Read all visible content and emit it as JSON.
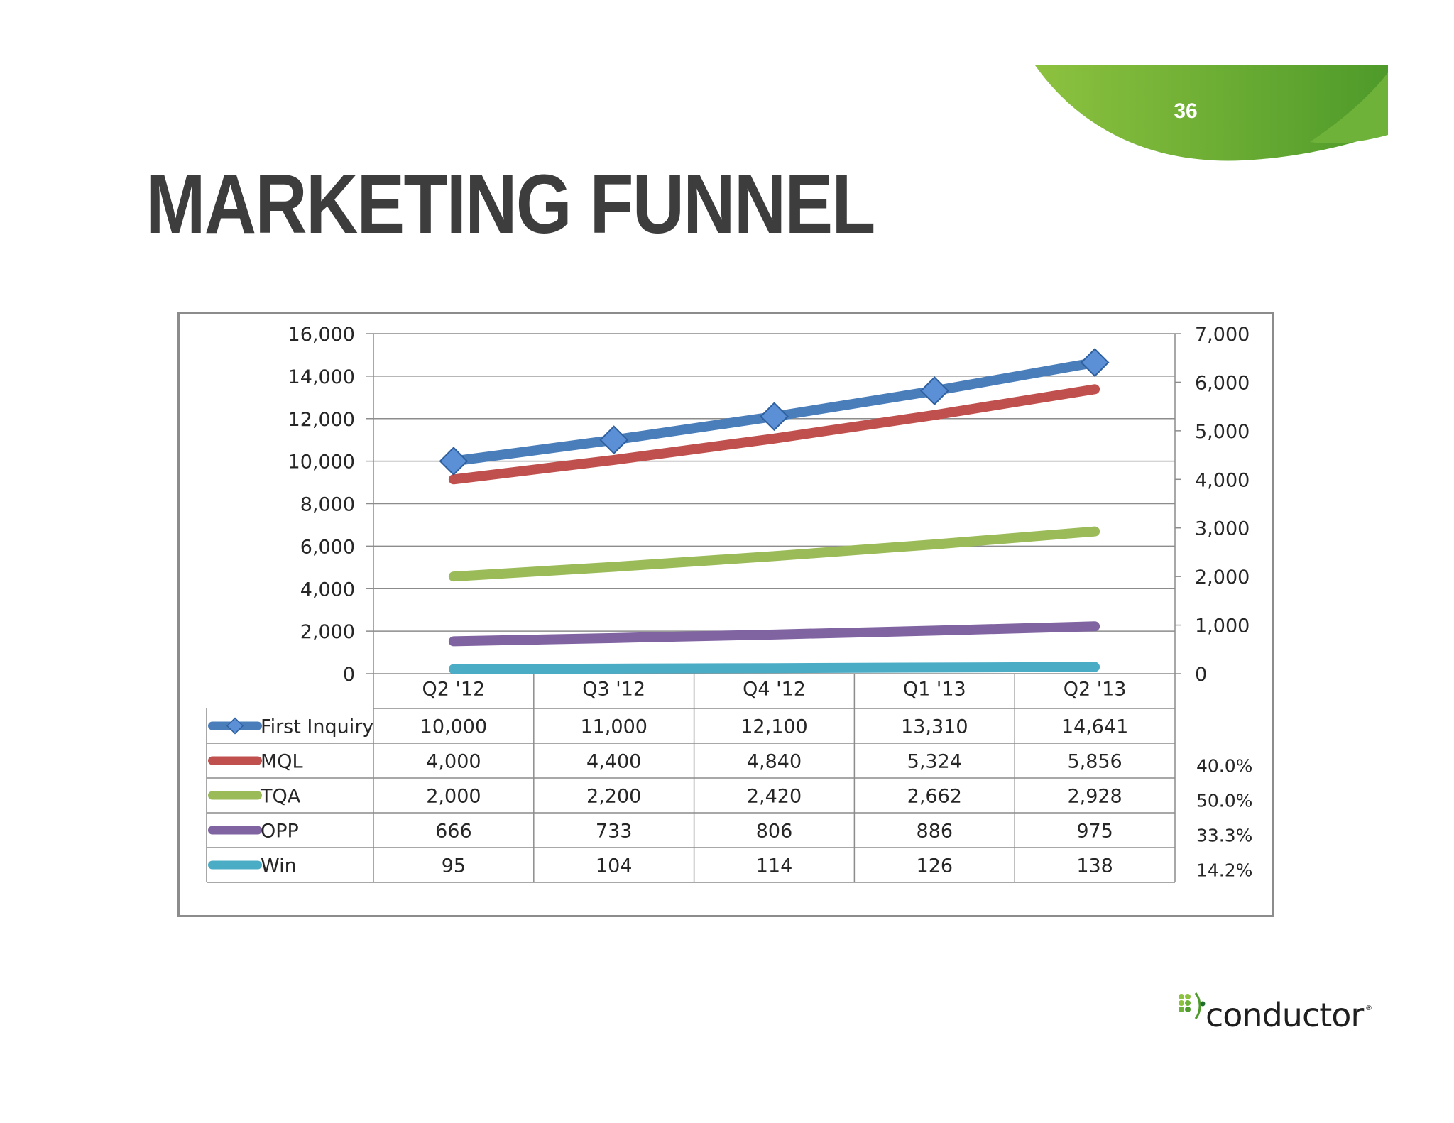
{
  "slide": {
    "number": "36",
    "title": "MARKETING FUNNEL",
    "logo_text": "conductor",
    "logo_mark": "®",
    "colors": {
      "accent_green": "#7ab648",
      "accent_green_dark": "#4e9a2a",
      "title": "#3d3d3d"
    }
  },
  "chart_data": {
    "type": "line",
    "categories": [
      "Q2 '12",
      "Q3 '12",
      "Q4 '12",
      "Q1 '13",
      "Q2 '13"
    ],
    "y_left": {
      "ticks": [
        "16,000",
        "14,000",
        "12,000",
        "10,000",
        "8,000",
        "6,000",
        "4,000",
        "2,000",
        "0"
      ],
      "ylim": [
        0,
        16000
      ]
    },
    "y_right": {
      "ticks": [
        "7,000",
        "6,000",
        "5,000",
        "4,000",
        "3,000",
        "2,000",
        "1,000",
        "0"
      ],
      "ylim": [
        0,
        7000
      ]
    },
    "grid": true,
    "legend": "data-table",
    "series": [
      {
        "name": "First Inquiry",
        "axis": "left",
        "color": "#4a7ebb",
        "marker": "diamond",
        "values": [
          10000,
          11000,
          12100,
          13310,
          14641
        ],
        "labels": [
          "10,000",
          "11,000",
          "12,100",
          "13,310",
          "14,641"
        ],
        "ratio": ""
      },
      {
        "name": "MQL",
        "axis": "right",
        "color": "#c0504d",
        "marker": "none",
        "values": [
          4000,
          4400,
          4840,
          5324,
          5856
        ],
        "labels": [
          "4,000",
          "4,400",
          "4,840",
          "5,324",
          "5,856"
        ],
        "ratio": "40.0%"
      },
      {
        "name": "TQA",
        "axis": "right",
        "color": "#9bbb59",
        "marker": "none",
        "values": [
          2000,
          2200,
          2420,
          2662,
          2928
        ],
        "labels": [
          "2,000",
          "2,200",
          "2,420",
          "2,662",
          "2,928"
        ],
        "ratio": "50.0%"
      },
      {
        "name": "OPP",
        "axis": "right",
        "color": "#8064a2",
        "marker": "none",
        "values": [
          666,
          733,
          806,
          886,
          975
        ],
        "labels": [
          "666",
          "733",
          "806",
          "886",
          "975"
        ],
        "ratio": "33.3%"
      },
      {
        "name": "Win",
        "axis": "right",
        "color": "#4bacc6",
        "marker": "none",
        "values": [
          95,
          104,
          114,
          126,
          138
        ],
        "labels": [
          "95",
          "104",
          "114",
          "126",
          "138"
        ],
        "ratio": "14.2%"
      }
    ]
  }
}
